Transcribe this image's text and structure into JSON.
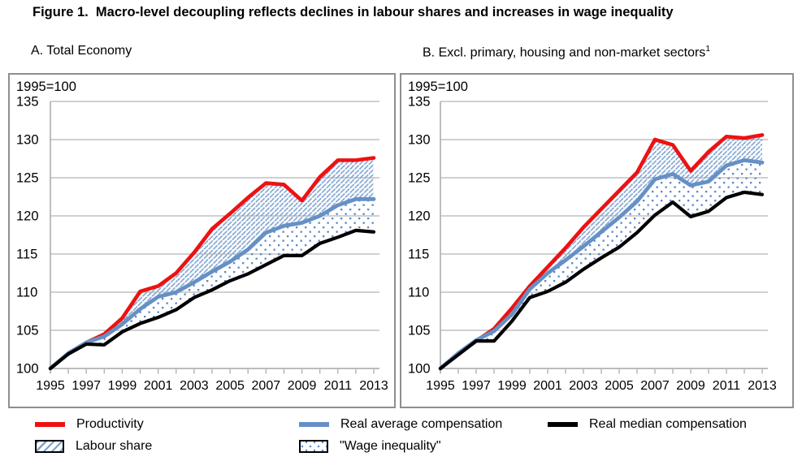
{
  "title": "Figure 1.  Macro-level decoupling reflects declines in labour shares and increases in wage inequality",
  "colors": {
    "productivity_red": "#ee1111",
    "compensation_blue": "#6690c5",
    "median_black": "#000000",
    "hatch_blue": "#7ba1d0",
    "dot_blue": "#5c88c4",
    "grid_gray": "#b3b3b3",
    "panel_border_gray": "#8f8f8f"
  },
  "legend": {
    "productivity": "Productivity",
    "real_average": "Real average compensation",
    "real_median": "Real median compensation",
    "labour_share": "Labour share",
    "wage_inequality": "\"Wage inequality\""
  },
  "chart_data": [
    {
      "type": "line",
      "title": "A. Total Economy",
      "title_superscript": "",
      "index_note": "1995=100",
      "x": [
        1995,
        1996,
        1997,
        1998,
        1999,
        2000,
        2001,
        2002,
        2003,
        2004,
        2005,
        2006,
        2007,
        2008,
        2009,
        2010,
        2011,
        2012,
        2013
      ],
      "xticks": [
        1995,
        1997,
        1999,
        2001,
        2003,
        2005,
        2007,
        2009,
        2011,
        2013
      ],
      "ylim": [
        100,
        135
      ],
      "ytick_step": 5,
      "grid": true,
      "series": [
        {
          "name": "Productivity",
          "color_key": "productivity_red",
          "values": [
            100,
            102.0,
            103.4,
            104.5,
            106.6,
            110.1,
            110.8,
            112.5,
            115.2,
            118.3,
            120.3,
            122.4,
            124.3,
            124.1,
            122.0,
            125.1,
            127.3,
            127.3,
            127.6
          ]
        },
        {
          "name": "Real average compensation",
          "color_key": "compensation_blue",
          "values": [
            100,
            102.0,
            103.4,
            104.2,
            105.8,
            107.8,
            109.4,
            110.0,
            111.3,
            112.7,
            114.0,
            115.6,
            117.8,
            118.7,
            119.1,
            120.0,
            121.4,
            122.2,
            122.2
          ]
        },
        {
          "name": "Real median compensation",
          "color_key": "median_black",
          "values": [
            100,
            101.9,
            103.2,
            103.1,
            104.8,
            105.9,
            106.7,
            107.7,
            109.3,
            110.3,
            111.5,
            112.4,
            113.6,
            114.8,
            114.8,
            116.4,
            117.2,
            118.1,
            117.9
          ]
        }
      ],
      "bands": [
        {
          "name": "Labour share",
          "upper": "Productivity",
          "lower": "Real average compensation",
          "pattern": "diagonal-hatch"
        },
        {
          "name": "\"Wage inequality\"",
          "upper": "Real average compensation",
          "lower": "Real median compensation",
          "pattern": "dots"
        }
      ]
    },
    {
      "type": "line",
      "title": "B. Excl. primary, housing and non-market sectors",
      "title_superscript": "1",
      "index_note": "1995=100",
      "x": [
        1995,
        1996,
        1997,
        1998,
        1999,
        2000,
        2001,
        2002,
        2003,
        2004,
        2005,
        2006,
        2007,
        2008,
        2009,
        2010,
        2011,
        2012,
        2013
      ],
      "xticks": [
        1995,
        1997,
        1999,
        2001,
        2003,
        2005,
        2007,
        2009,
        2011,
        2013
      ],
      "ylim": [
        100,
        135
      ],
      "ytick_step": 5,
      "grid": true,
      "series": [
        {
          "name": "Productivity",
          "color_key": "productivity_red",
          "values": [
            100,
            101.9,
            103.6,
            105.2,
            107.9,
            110.8,
            113.3,
            115.8,
            118.5,
            120.9,
            123.3,
            125.7,
            130.0,
            129.3,
            125.9,
            128.4,
            130.4,
            130.2,
            130.6
          ]
        },
        {
          "name": "Real average compensation",
          "color_key": "compensation_blue",
          "values": [
            100,
            102.0,
            103.7,
            104.9,
            107.1,
            110.4,
            112.5,
            114.2,
            116.0,
            117.9,
            119.8,
            121.9,
            124.8,
            125.5,
            124.0,
            124.5,
            126.6,
            127.3,
            127.0
          ]
        },
        {
          "name": "Real median compensation",
          "color_key": "median_black",
          "values": [
            100,
            101.8,
            103.6,
            103.6,
            106.2,
            109.3,
            110.1,
            111.3,
            113.0,
            114.5,
            115.9,
            117.8,
            120.1,
            121.8,
            119.9,
            120.6,
            122.4,
            123.1,
            122.8
          ]
        }
      ],
      "bands": [
        {
          "name": "Labour share",
          "upper": "Productivity",
          "lower": "Real average compensation",
          "pattern": "diagonal-hatch"
        },
        {
          "name": "\"Wage inequality\"",
          "upper": "Real average compensation",
          "lower": "Real median compensation",
          "pattern": "dots"
        }
      ]
    }
  ]
}
